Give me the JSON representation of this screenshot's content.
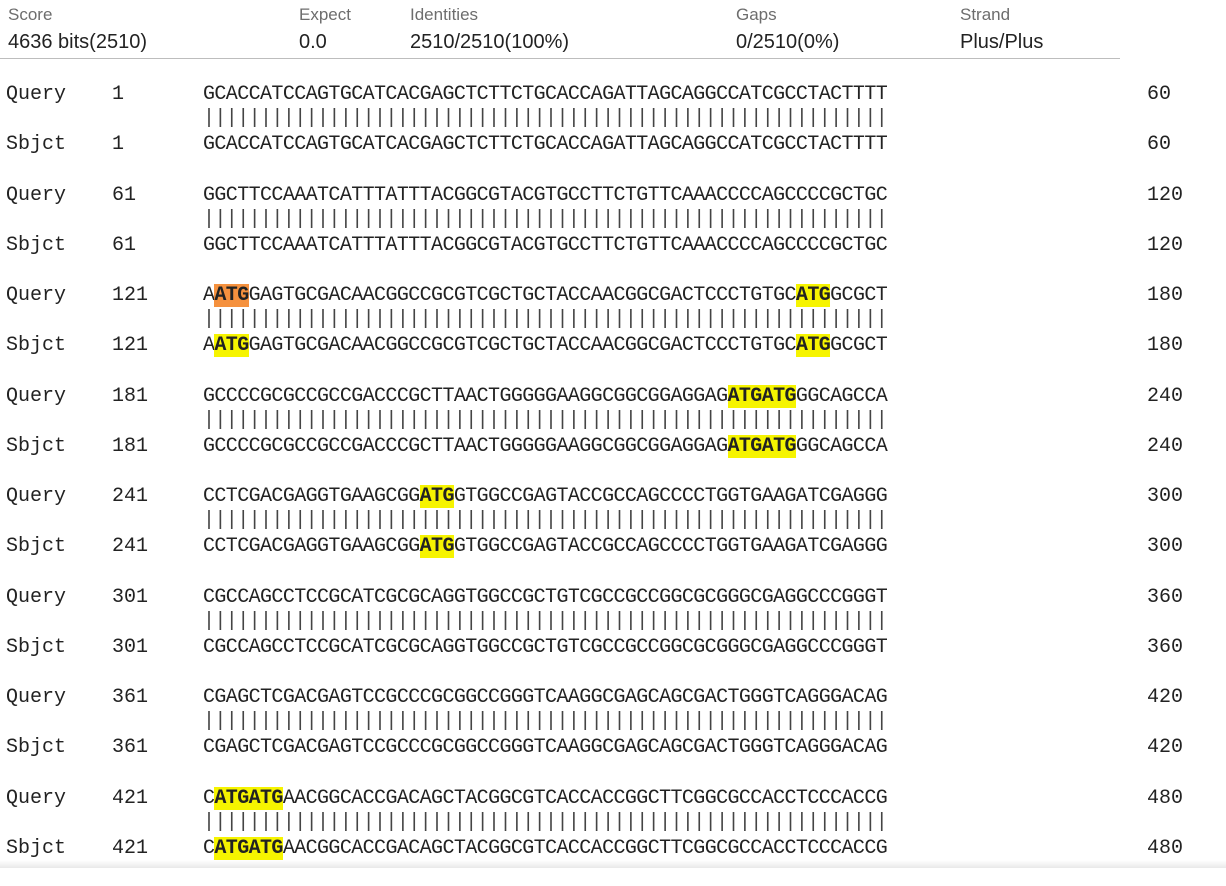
{
  "summary": {
    "score": {
      "label": "Score",
      "value": "4636 bits(2510)"
    },
    "expect": {
      "label": "Expect",
      "value": "0.0"
    },
    "identities": {
      "label": "Identities",
      "value": "2510/2510(100%)"
    },
    "gaps": {
      "label": "Gaps",
      "value": "0/2510(0%)"
    },
    "strand": {
      "label": "Strand",
      "value": "Plus/Plus"
    }
  },
  "alignment": {
    "query_label": "Query",
    "subject_label": "Sbjct",
    "match_bars": "||||||||||||||||||||||||||||||||||||||||||||||||||||||||||||",
    "highlight_colors": {
      "yellow": "#f6f400",
      "orange": "#f5913e"
    },
    "blocks": [
      {
        "q_start": "1",
        "q_end": "60",
        "s_start": "1",
        "s_end": "60",
        "q_seq": [
          {
            "t": "GCACCATCCAGTGCATCACGAGCTCTTCTGCACCAGATTAGCAGGCCATCGCCTACTTTT"
          }
        ],
        "s_seq": [
          {
            "t": "GCACCATCCAGTGCATCACGAGCTCTTCTGCACCAGATTAGCAGGCCATCGCCTACTTTT"
          }
        ]
      },
      {
        "q_start": "61",
        "q_end": "120",
        "s_start": "61",
        "s_end": "120",
        "q_seq": [
          {
            "t": "GGCTTCCAAATCATTTATTTACGGCGTACGTGCCTTCTGTTCAAACCCCAGCCCCGCTGC"
          }
        ],
        "s_seq": [
          {
            "t": "GGCTTCCAAATCATTTATTTACGGCGTACGTGCCTTCTGTTCAAACCCCAGCCCCGCTGC"
          }
        ]
      },
      {
        "q_start": "121",
        "q_end": "180",
        "s_start": "121",
        "s_end": "180",
        "q_seq": [
          {
            "t": "A"
          },
          {
            "t": "ATG",
            "hl": "orange"
          },
          {
            "t": "GAGTGCGACAACGGCCGCGTCGCTGCTACCAACGGCGACTCCCTGTGC"
          },
          {
            "t": "ATG",
            "hl": "yellow"
          },
          {
            "t": "GCGCT"
          }
        ],
        "s_seq": [
          {
            "t": "A"
          },
          {
            "t": "ATG",
            "hl": "yellow"
          },
          {
            "t": "GAGTGCGACAACGGCCGCGTCGCTGCTACCAACGGCGACTCCCTGTGC"
          },
          {
            "t": "ATG",
            "hl": "yellow"
          },
          {
            "t": "GCGCT"
          }
        ]
      },
      {
        "q_start": "181",
        "q_end": "240",
        "s_start": "181",
        "s_end": "240",
        "q_seq": [
          {
            "t": "GCCCCGCGCCGCCGACCCGCTTAACTGGGGGAAGGCGGCGGAGGAG"
          },
          {
            "t": "ATGATG",
            "hl": "yellow"
          },
          {
            "t": "GGCAGCCA"
          }
        ],
        "s_seq": [
          {
            "t": "GCCCCGCGCCGCCGACCCGCTTAACTGGGGGAAGGCGGCGGAGGAG"
          },
          {
            "t": "ATGATG",
            "hl": "yellow"
          },
          {
            "t": "GGCAGCCA"
          }
        ]
      },
      {
        "q_start": "241",
        "q_end": "300",
        "s_start": "241",
        "s_end": "300",
        "q_seq": [
          {
            "t": "CCTCGACGAGGTGAAGCGG"
          },
          {
            "t": "ATG",
            "hl": "yellow"
          },
          {
            "t": "GTGGCCGAGTACCGCCAGCCCCTGGTGAAGATCGAGGG"
          }
        ],
        "s_seq": [
          {
            "t": "CCTCGACGAGGTGAAGCGG"
          },
          {
            "t": "ATG",
            "hl": "yellow"
          },
          {
            "t": "GTGGCCGAGTACCGCCAGCCCCTGGTGAAGATCGAGGG"
          }
        ]
      },
      {
        "q_start": "301",
        "q_end": "360",
        "s_start": "301",
        "s_end": "360",
        "q_seq": [
          {
            "t": "CGCCAGCCTCCGCATCGCGCAGGTGGCCGCTGTCGCCGCCGGCGCGGGCGAGGCCCGGGT"
          }
        ],
        "s_seq": [
          {
            "t": "CGCCAGCCTCCGCATCGCGCAGGTGGCCGCTGTCGCCGCCGGCGCGGGCGAGGCCCGGGT"
          }
        ]
      },
      {
        "q_start": "361",
        "q_end": "420",
        "s_start": "361",
        "s_end": "420",
        "q_seq": [
          {
            "t": "CGAGCTCGACGAGTCCGCCCGCGGCCGGGTCAAGGCGAGCAGCGACTGGGTCAGGGACAG"
          }
        ],
        "s_seq": [
          {
            "t": "CGAGCTCGACGAGTCCGCCCGCGGCCGGGTCAAGGCGAGCAGCGACTGGGTCAGGGACAG"
          }
        ]
      },
      {
        "q_start": "421",
        "q_end": "480",
        "s_start": "421",
        "s_end": "480",
        "q_seq": [
          {
            "t": "C"
          },
          {
            "t": "ATGATG",
            "hl": "yellow"
          },
          {
            "t": "AACGGCACCGACAGCTACGGCGTCACCACCGGCTTCGGCGCCACCTCCCACCG"
          }
        ],
        "s_seq": [
          {
            "t": "C"
          },
          {
            "t": "ATGATG",
            "hl": "yellow"
          },
          {
            "t": "AACGGCACCGACAGCTACGGCGTCACCACCGGCTTCGGCGCCACCTCCCACCG"
          }
        ]
      }
    ]
  }
}
